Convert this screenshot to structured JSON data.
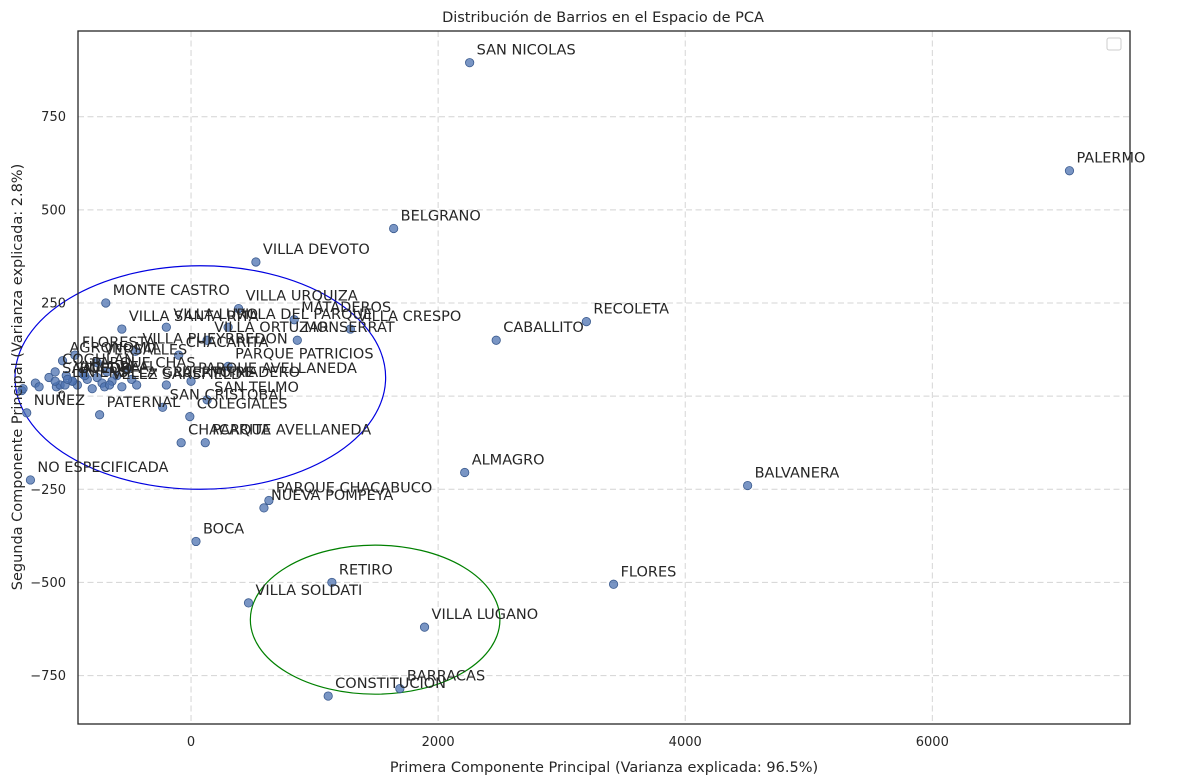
{
  "chart_data": {
    "type": "scatter",
    "title": "Distribución de Barrios en el Espacio de PCA",
    "xlabel": "Primera Componente Principal (Varianza explicada: 96.5%)",
    "ylabel": "Segunda Componente Principal (Varianza explicada: 2.8%)",
    "xlim": [
      -915,
      7600
    ],
    "ylim": [
      -880,
      980
    ],
    "xticks": [
      0,
      2000,
      4000,
      6000
    ],
    "yticks": [
      -750,
      -500,
      -250,
      0,
      250,
      500,
      750
    ],
    "xtick_labels": [
      "0",
      "2000",
      "4000",
      "6000"
    ],
    "ytick_labels": [
      "−750",
      "−500",
      "−250",
      "0",
      "250",
      "500",
      "750"
    ],
    "grid": true,
    "legend": "top-right (empty)",
    "labeled_points": [
      {
        "label": "SAN NICOLAS",
        "x": 2255,
        "y": 895
      },
      {
        "label": "PALERMO",
        "x": 7110,
        "y": 605
      },
      {
        "label": "BELGRANO",
        "x": 1640,
        "y": 450
      },
      {
        "label": "VILLA DEVOTO",
        "x": 525,
        "y": 360
      },
      {
        "label": "MONTE CASTRO",
        "x": -690,
        "y": 250
      },
      {
        "label": "VILLA URQUIZA",
        "x": 385,
        "y": 235
      },
      {
        "label": "MATADEROS",
        "x": 835,
        "y": 205
      },
      {
        "label": "VILLA CRESPO",
        "x": 1290,
        "y": 180
      },
      {
        "label": "RECOLETA",
        "x": 3200,
        "y": 200
      },
      {
        "label": "CABALLITO",
        "x": 2470,
        "y": 150
      },
      {
        "label": "MONSERRAT",
        "x": 860,
        "y": 150
      },
      {
        "label": "VILLA DEL PARQUE",
        "x": 300,
        "y": 185
      },
      {
        "label": "VILLA LURO",
        "x": -200,
        "y": 185
      },
      {
        "label": "VILLA SANTA RITA",
        "x": -560,
        "y": 180
      },
      {
        "label": "VILLA ORTUZAR",
        "x": 130,
        "y": 150
      },
      {
        "label": "PARQUE PATRICIOS",
        "x": 300,
        "y": 80
      },
      {
        "label": "CHACARITA",
        "x": -100,
        "y": 110
      },
      {
        "label": "VILLA PUEYRREDON",
        "x": -450,
        "y": 120
      },
      {
        "label": "FLORESTA",
        "x": -940,
        "y": 110
      },
      {
        "label": "AGRONOMIA",
        "x": -1040,
        "y": 95
      },
      {
        "label": "VERSALLES",
        "x": -760,
        "y": 90
      },
      {
        "label": "COGHLAN",
        "x": -1100,
        "y": 65
      },
      {
        "label": "PARQUE CHAS",
        "x": -860,
        "y": 55
      },
      {
        "label": "PARQUE AVELLANEDA",
        "x": 0,
        "y": 40
      },
      {
        "label": "PUERTO MADERO",
        "x": -200,
        "y": 30
      },
      {
        "label": "BOEDO",
        "x": -960,
        "y": 40
      },
      {
        "label": "VELEZ SARSFIELD",
        "x": -700,
        "y": 25
      },
      {
        "label": "LINIERS",
        "x": -1020,
        "y": 30
      },
      {
        "label": "SAAVEDRA",
        "x": -1100,
        "y": 40
      },
      {
        "label": "VILLA REAL",
        "x": -1000,
        "y": 45
      },
      {
        "label": "VILLA GRAL. MITRE",
        "x": -660,
        "y": 30
      },
      {
        "label": "SAN TELMO",
        "x": 130,
        "y": -10
      },
      {
        "label": "COLEGIALES",
        "x": -10,
        "y": -55
      },
      {
        "label": "NUÑEZ",
        "x": -1330,
        "y": -45
      },
      {
        "label": "PATERNAL",
        "x": -740,
        "y": -50
      },
      {
        "label": "SAN CRISTOBAL",
        "x": -230,
        "y": -30
      },
      {
        "label": "CHACARITA",
        "x": -80,
        "y": -125
      },
      {
        "label": "PARQUE AVELLANEDA",
        "x": 115,
        "y": -125
      },
      {
        "label": "ALMAGRO",
        "x": 2215,
        "y": -205
      },
      {
        "label": "BALVANERA",
        "x": 4505,
        "y": -240
      },
      {
        "label": "NO ESPECIFICADA",
        "x": -1300,
        "y": -225
      },
      {
        "label": "PARQUE CHACABUCO",
        "x": 630,
        "y": -280
      },
      {
        "label": "NUEVA POMPEYA",
        "x": 590,
        "y": -300
      },
      {
        "label": "BOCA",
        "x": 40,
        "y": -390
      },
      {
        "label": "RETIRO",
        "x": 1140,
        "y": -500
      },
      {
        "label": "FLORES",
        "x": 3420,
        "y": -505
      },
      {
        "label": "VILLA SOLDATI",
        "x": 465,
        "y": -555
      },
      {
        "label": "VILLA LUGANO",
        "x": 1890,
        "y": -620
      },
      {
        "label": "BARRACAS",
        "x": 1690,
        "y": -785
      },
      {
        "label": "CONSTITUCION",
        "x": 1110,
        "y": -805
      }
    ],
    "unlabeled_points": [
      [
        -1370,
        15
      ],
      [
        -1360,
        20
      ],
      [
        -1260,
        35
      ],
      [
        -1230,
        25
      ],
      [
        -1150,
        50
      ],
      [
        -1090,
        25
      ],
      [
        -1060,
        30
      ],
      [
        -1010,
        55
      ],
      [
        -960,
        40
      ],
      [
        -920,
        30
      ],
      [
        -880,
        60
      ],
      [
        -840,
        45
      ],
      [
        -800,
        20
      ],
      [
        -760,
        50
      ],
      [
        -720,
        35
      ],
      [
        -680,
        65
      ],
      [
        -640,
        40
      ],
      [
        -600,
        55
      ],
      [
        -560,
        25
      ],
      [
        -520,
        70
      ],
      [
        -480,
        45
      ],
      [
        -440,
        30
      ]
    ],
    "ellipses": [
      {
        "color": "#0000e0",
        "cx": 75,
        "cy": 50,
        "rx": 1500,
        "ry": 300
      },
      {
        "color": "#008000",
        "cx": 1490,
        "cy": -600,
        "rx": 1010,
        "ry": 200
      }
    ]
  }
}
